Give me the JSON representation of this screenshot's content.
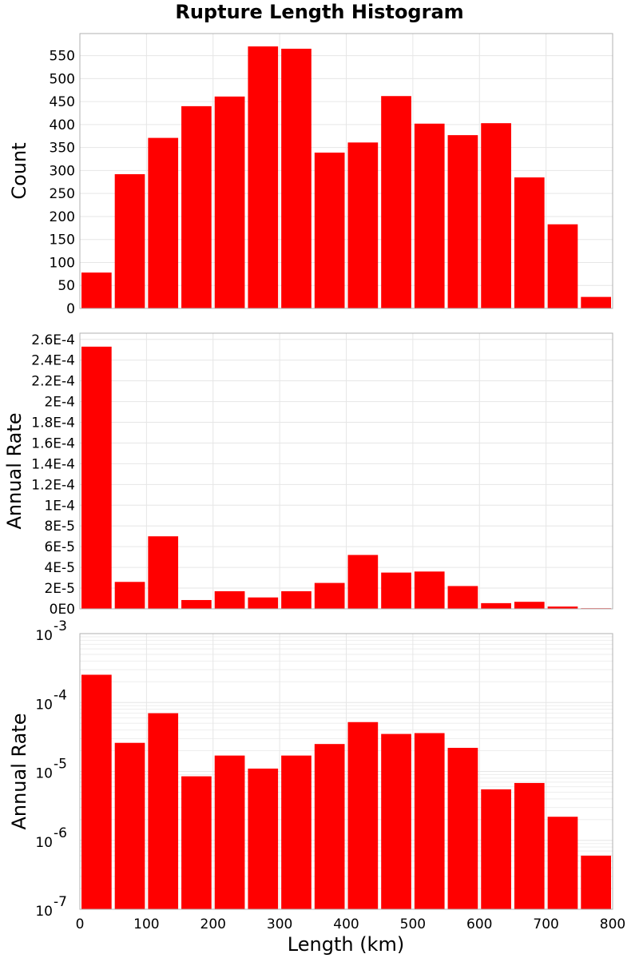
{
  "chart_data": {
    "type": "bar",
    "title": "Rupture Length Histogram",
    "xlabel": "Length (km)",
    "x_ticks": [
      "0",
      "100",
      "200",
      "300",
      "400",
      "500",
      "600",
      "700",
      "800"
    ],
    "xlim": [
      0,
      800
    ],
    "bin_width": 50,
    "bin_centers": [
      25,
      75,
      125,
      175,
      225,
      275,
      325,
      375,
      425,
      475,
      525,
      575,
      625,
      675,
      725,
      775
    ],
    "bar_color": "#ff0000",
    "grid": true,
    "panels": [
      {
        "ylabel": "Count",
        "scale": "linear",
        "ylim": [
          0,
          598
        ],
        "y_ticks": [
          0,
          50,
          100,
          150,
          200,
          250,
          300,
          350,
          400,
          450,
          500,
          550
        ],
        "y_tick_labels": [
          "0",
          "50",
          "100",
          "150",
          "200",
          "250",
          "300",
          "350",
          "400",
          "450",
          "500",
          "550"
        ],
        "values": [
          78,
          292,
          371,
          440,
          461,
          570,
          565,
          339,
          361,
          462,
          402,
          377,
          403,
          285,
          183,
          25
        ]
      },
      {
        "ylabel": "Annual Rate",
        "scale": "linear",
        "ylim": [
          0,
          0.000266
        ],
        "y_ticks": [
          0,
          2e-05,
          4e-05,
          6e-05,
          8e-05,
          0.0001,
          0.00012,
          0.00014,
          0.00016,
          0.00018,
          0.0002,
          0.00022,
          0.00024,
          0.00026
        ],
        "y_tick_labels": [
          "0E0",
          "2E-5",
          "4E-5",
          "6E-5",
          "8E-5",
          "1E-4",
          "1.2E-4",
          "1.4E-4",
          "1.6E-4",
          "1.8E-4",
          "2E-4",
          "2.2E-4",
          "2.4E-4",
          "2.6E-4"
        ],
        "values": [
          0.000253,
          2.6e-05,
          7e-05,
          8.5e-06,
          1.7e-05,
          1.1e-05,
          1.7e-05,
          2.5e-05,
          5.2e-05,
          3.5e-05,
          3.6e-05,
          2.2e-05,
          5.5e-06,
          6.8e-06,
          2.2e-06,
          6e-07
        ]
      },
      {
        "ylabel": "Annual Rate",
        "scale": "log",
        "ylim": [
          1e-07,
          0.001
        ],
        "y_ticks": [
          1e-07,
          1e-06,
          1e-05,
          0.0001,
          0.001
        ],
        "y_tick_bases": [
          "10",
          "10",
          "10",
          "10",
          "10"
        ],
        "y_tick_exponents": [
          "-7",
          "-6",
          "-5",
          "-4",
          "-3"
        ],
        "values": [
          0.000253,
          2.6e-05,
          7e-05,
          8.5e-06,
          1.7e-05,
          1.1e-05,
          1.7e-05,
          2.5e-05,
          5.2e-05,
          3.5e-05,
          3.6e-05,
          2.2e-05,
          5.5e-06,
          6.8e-06,
          2.2e-06,
          6e-07
        ]
      }
    ]
  }
}
